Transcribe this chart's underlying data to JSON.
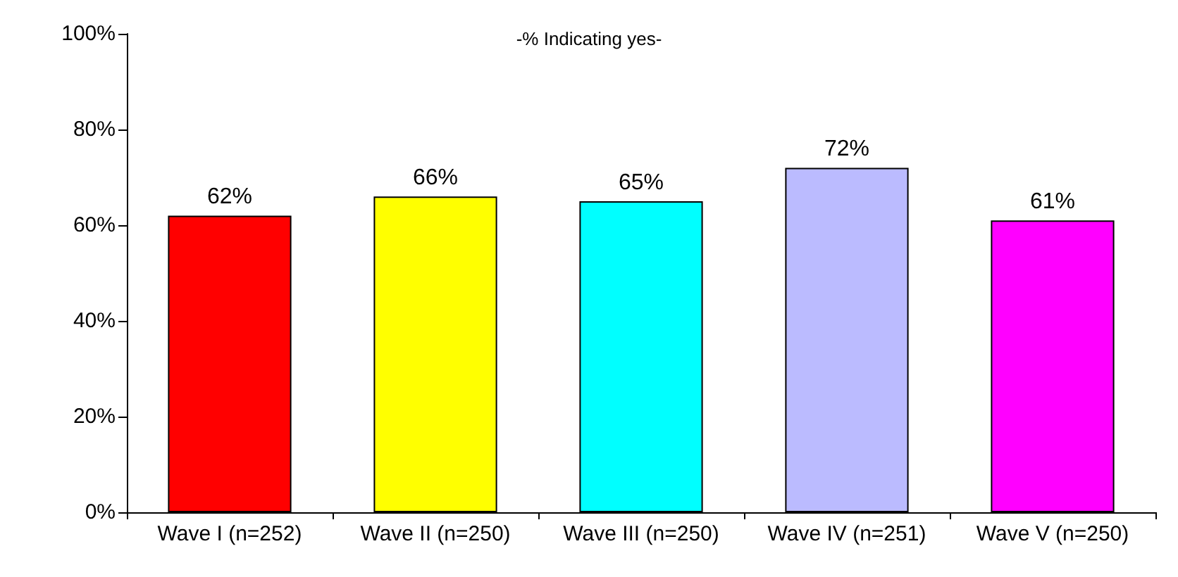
{
  "chart_data": {
    "type": "bar",
    "title": "-% Indicating yes-",
    "categories": [
      "Wave I (n=252)",
      "Wave II (n=250)",
      "Wave III (n=250)",
      "Wave IV (n=251)",
      "Wave V (n=250)"
    ],
    "values": [
      62,
      66,
      65,
      72,
      61
    ],
    "value_labels": [
      "62%",
      "66%",
      "65%",
      "72%",
      "61%"
    ],
    "colors": [
      "#ff0000",
      "#ffff00",
      "#00ffff",
      "#bbbbff",
      "#ff00ff"
    ],
    "ylim": [
      0,
      100
    ],
    "yticks": [
      {
        "value": 0,
        "label": "0%"
      },
      {
        "value": 20,
        "label": "20%"
      },
      {
        "value": 40,
        "label": "40%"
      },
      {
        "value": 60,
        "label": "60%"
      },
      {
        "value": 80,
        "label": "80%"
      },
      {
        "value": 100,
        "label": "100%"
      }
    ],
    "grid": false
  }
}
